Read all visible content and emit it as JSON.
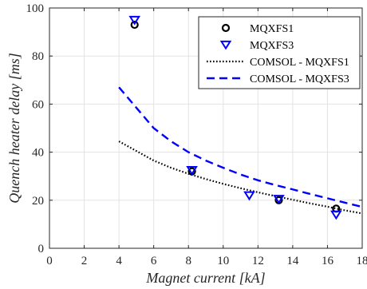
{
  "chart_data": {
    "type": "scatter",
    "xlabel": "Magnet current [kA]",
    "ylabel": "Quench heater delay [ms]",
    "xlim": [
      0,
      18
    ],
    "ylim": [
      0,
      100
    ],
    "xticks": [
      0,
      2,
      4,
      6,
      8,
      10,
      12,
      14,
      16,
      18
    ],
    "yticks": [
      0,
      20,
      40,
      60,
      80,
      100
    ],
    "grid": true,
    "legend_position": "top-right",
    "series": [
      {
        "name": "MQXFS1",
        "kind": "marker",
        "marker": "circle",
        "color": "#000000",
        "x": [
          4.9,
          8.2,
          13.2,
          16.5
        ],
        "y": [
          93,
          32,
          20,
          16.5
        ]
      },
      {
        "name": "MQXFS3",
        "kind": "marker",
        "marker": "triangle-down",
        "color": "#0000ff",
        "x": [
          4.9,
          8.2,
          11.5,
          13.2,
          16.5
        ],
        "y": [
          95,
          32.5,
          22,
          20.5,
          14
        ]
      },
      {
        "name": "COMSOL - MQXFS1",
        "kind": "line",
        "dash": "dotted",
        "color": "#000000",
        "x": [
          4,
          5,
          6,
          7,
          8,
          9,
          10,
          11,
          12,
          13,
          14,
          15,
          16,
          17,
          18
        ],
        "y": [
          44.5,
          40.5,
          36.5,
          33.5,
          31,
          28.8,
          26.8,
          25,
          23.3,
          21.7,
          20.2,
          18.7,
          17.3,
          15.8,
          14.5
        ]
      },
      {
        "name": "COMSOL - MQXFS3",
        "kind": "line",
        "dash": "dashed",
        "color": "#0000ff",
        "x": [
          4,
          5,
          6,
          7,
          8,
          9,
          10,
          11,
          12,
          13,
          14,
          15,
          16,
          17,
          18
        ],
        "y": [
          67,
          58.5,
          50,
          44.5,
          40,
          36.5,
          33.5,
          30.7,
          28.3,
          26.3,
          24.5,
          22.6,
          20.8,
          19,
          17.2
        ]
      }
    ]
  }
}
